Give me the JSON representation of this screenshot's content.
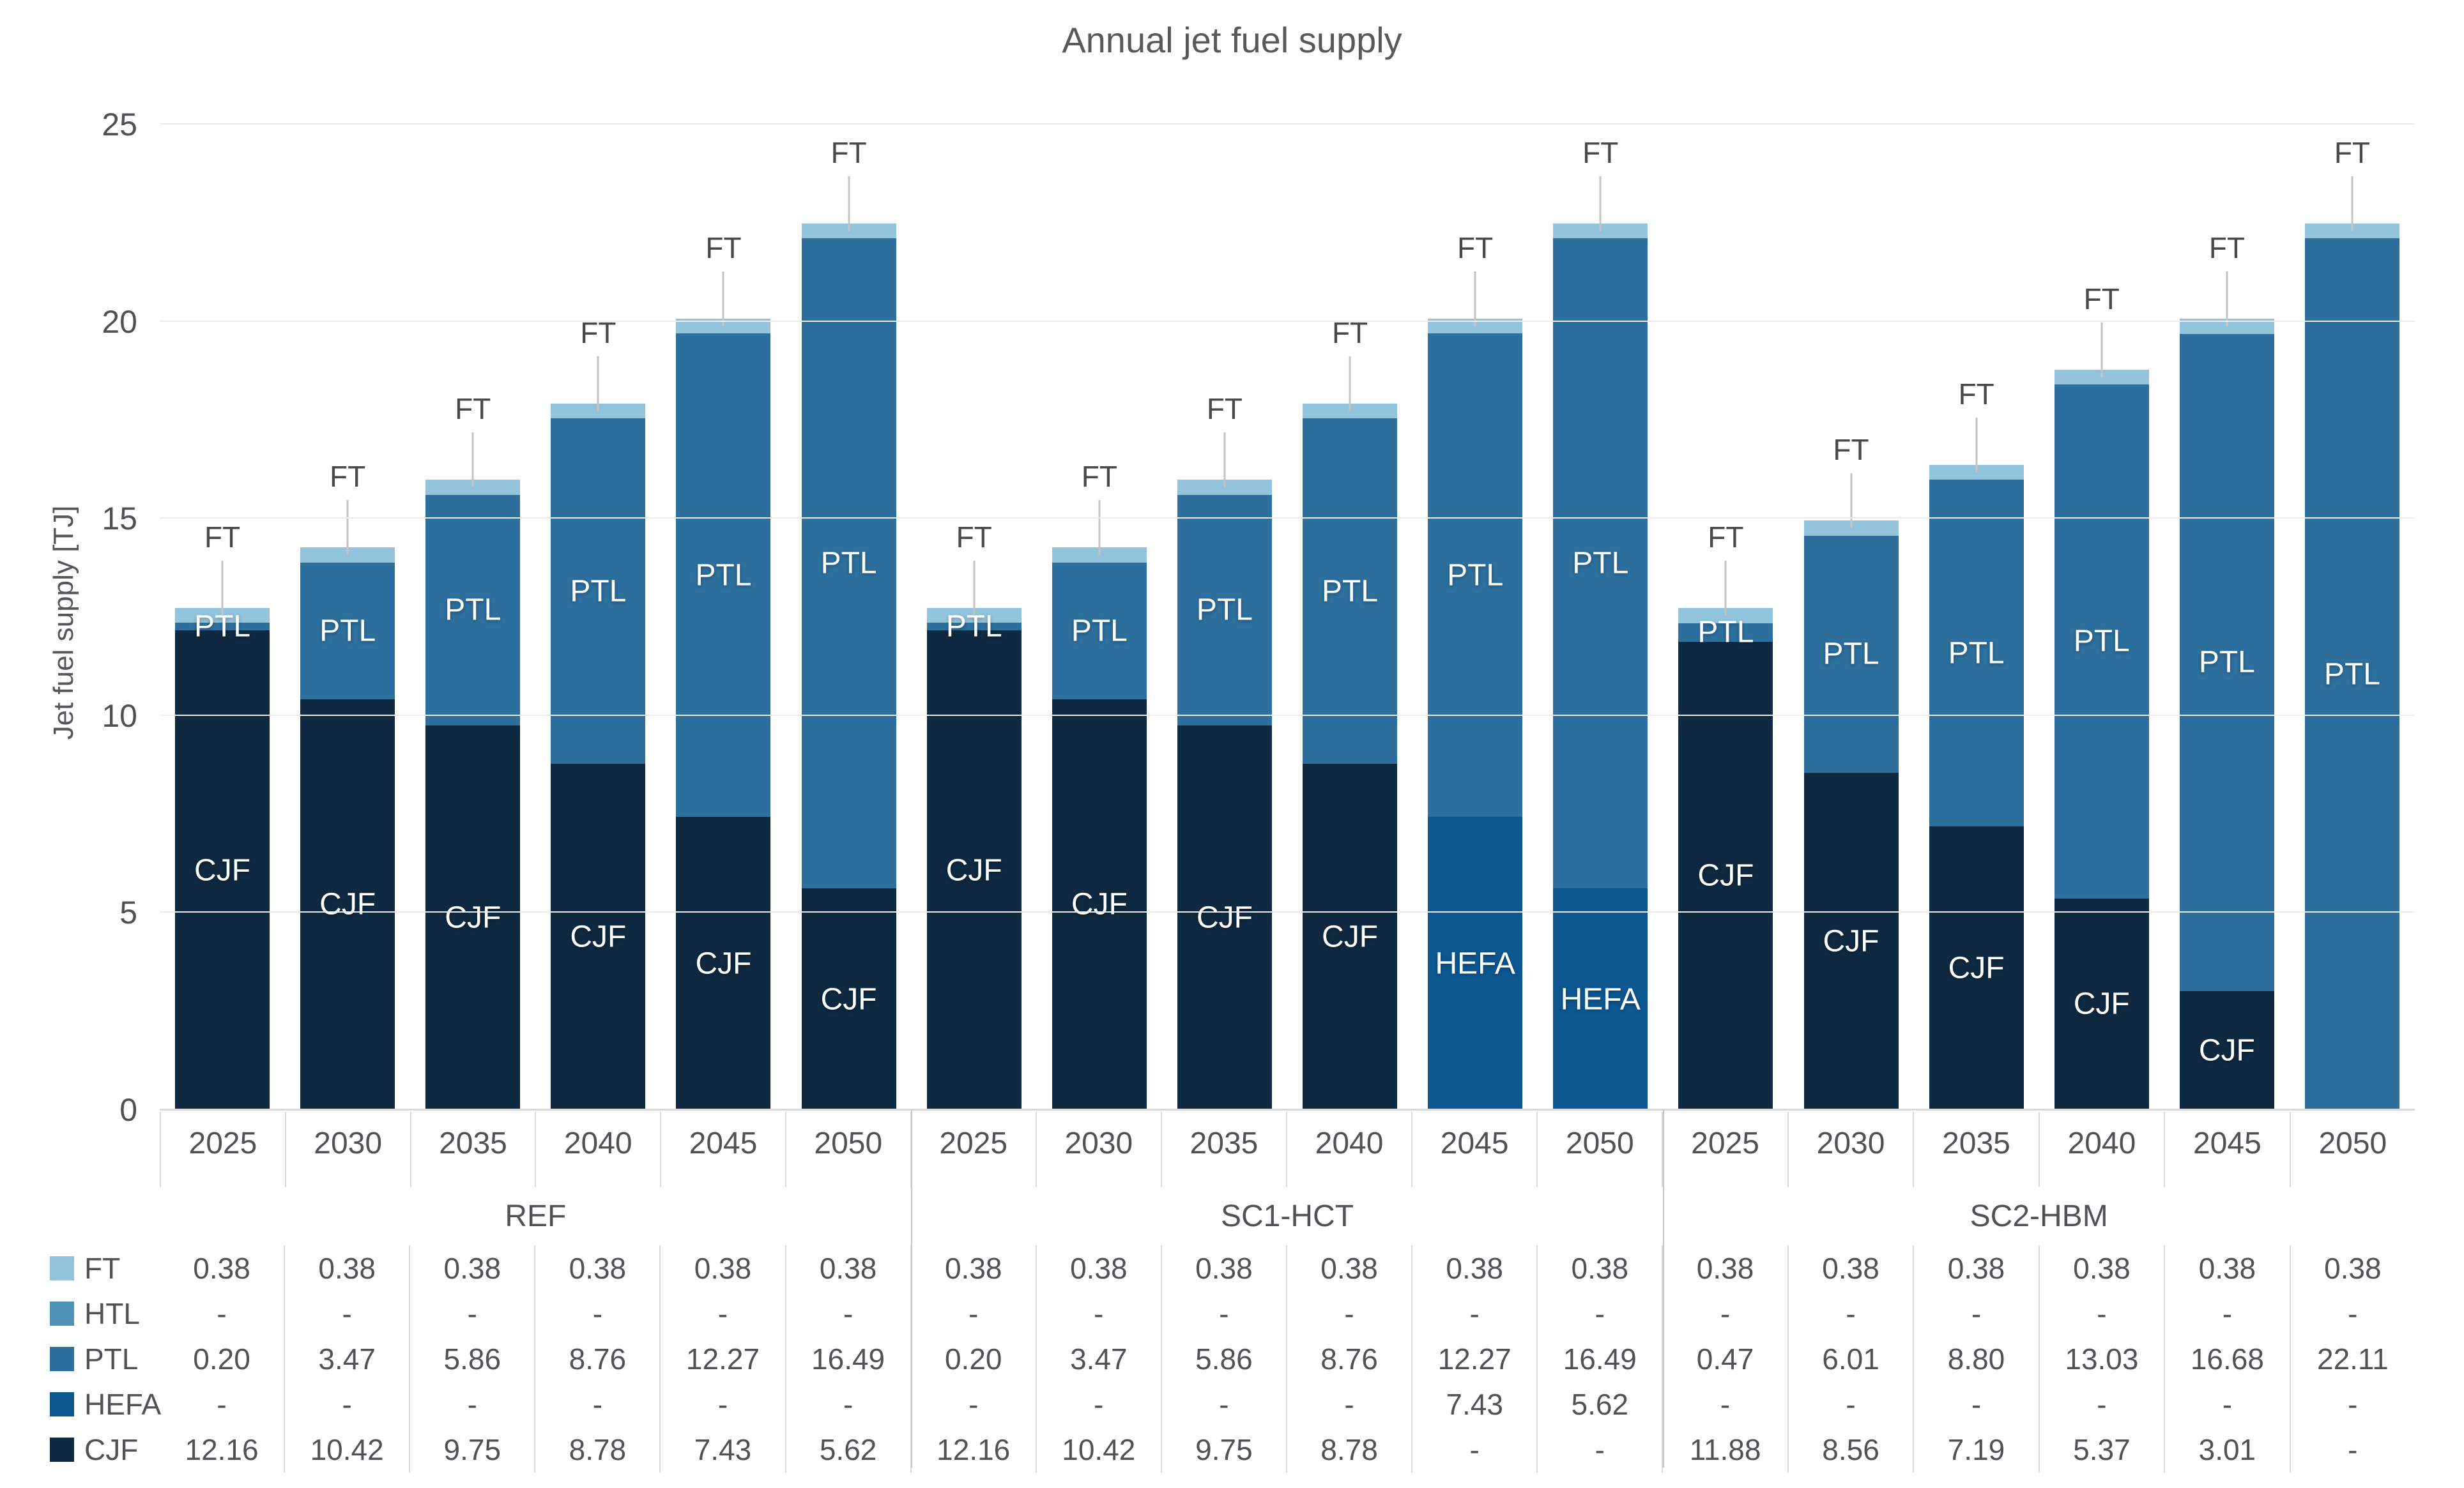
{
  "chart_data": {
    "type": "bar",
    "stacked": true,
    "title": "Annual jet fuel supply",
    "ylabel": "Jet fuel supply [TJ]",
    "ylim": [
      0,
      25
    ],
    "yticks": [
      0,
      5,
      10,
      15,
      20,
      25
    ],
    "grid": "horizontal",
    "legend_position": "table-left",
    "missing_display": "-",
    "groups": [
      "REF",
      "SC1-HCT",
      "SC2-HBM"
    ],
    "years": [
      "2025",
      "2030",
      "2035",
      "2040",
      "2045",
      "2050"
    ],
    "series": [
      {
        "name": "FT",
        "color": "#92c4dd",
        "values": [
          0.38,
          0.38,
          0.38,
          0.38,
          0.38,
          0.38,
          0.38,
          0.38,
          0.38,
          0.38,
          0.38,
          0.38,
          0.38,
          0.38,
          0.38,
          0.38,
          0.38,
          0.38
        ]
      },
      {
        "name": "HTL",
        "color": "#4f93b8",
        "values": [
          null,
          null,
          null,
          null,
          null,
          null,
          null,
          null,
          null,
          null,
          null,
          null,
          null,
          null,
          null,
          null,
          null,
          null
        ]
      },
      {
        "name": "PTL",
        "color": "#2d6f9d",
        "values": [
          0.2,
          3.47,
          5.86,
          8.76,
          12.27,
          16.49,
          0.2,
          3.47,
          5.86,
          8.76,
          12.27,
          16.49,
          0.47,
          6.01,
          8.8,
          13.03,
          16.68,
          22.11
        ]
      },
      {
        "name": "HEFA",
        "color": "#0d5791",
        "values": [
          null,
          null,
          null,
          null,
          null,
          null,
          null,
          null,
          null,
          null,
          7.43,
          5.62,
          null,
          null,
          null,
          null,
          null,
          null
        ]
      },
      {
        "name": "CJF",
        "color": "#0e2940",
        "values": [
          12.16,
          10.42,
          9.75,
          8.78,
          7.43,
          5.62,
          12.16,
          10.42,
          9.75,
          8.78,
          null,
          null,
          11.88,
          8.56,
          7.19,
          5.37,
          3.01,
          null
        ]
      }
    ]
  }
}
